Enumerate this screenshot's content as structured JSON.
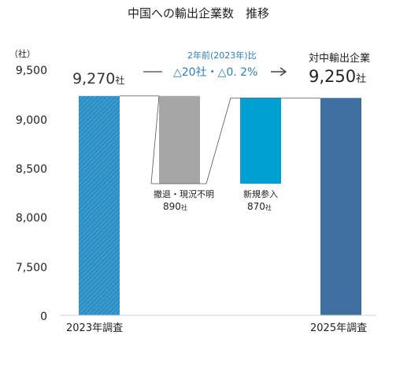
{
  "chart_data": {
    "type": "bar",
    "title": "中国への輸出企業数　推移",
    "y_unit_label": "（社）",
    "ylim": [
      0,
      9500
    ],
    "y_ticks": [
      "9,500",
      "9,000",
      "8,500",
      "8,000",
      "7,500",
      "0"
    ],
    "categories": [
      "2023年調査",
      "",
      "",
      "2025年調査"
    ],
    "values": [
      9270,
      890,
      870,
      9250
    ],
    "bar_colors": [
      "#2b8fc6",
      "#a6a6a6",
      "#00a0d2",
      "#3e6f9e"
    ],
    "start_label": {
      "number": "9,270",
      "suffix": "社"
    },
    "decrease": {
      "name": "撤退・現況不明",
      "number": "890",
      "suffix": "社"
    },
    "increase": {
      "name": "新規参入",
      "number": "870",
      "suffix": "社"
    },
    "comparison": {
      "label": "2年前(2023年)比",
      "value": "△20社・△0. 2%"
    },
    "end_label": {
      "name": "対中輸出企業",
      "number": "9,250",
      "suffix": "社"
    }
  }
}
